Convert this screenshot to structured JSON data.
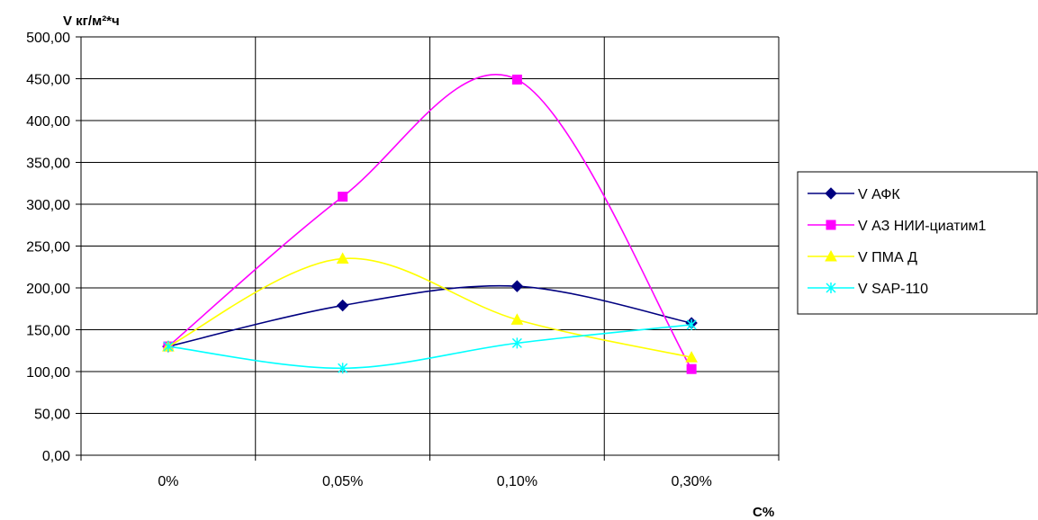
{
  "chart_data": {
    "type": "line",
    "title": "",
    "ylabel": "V кг/м²*ч",
    "xlabel": "С%",
    "categories": [
      "0%",
      "0,05%",
      "0,10%",
      "0,30%"
    ],
    "ylim": [
      0,
      500
    ],
    "ystep": 50,
    "y_tick_labels": [
      "0,00",
      "50,00",
      "100,00",
      "150,00",
      "200,00",
      "250,00",
      "300,00",
      "350,00",
      "400,00",
      "450,00",
      "500,00"
    ],
    "grid": true,
    "smooth": true,
    "legend_position": "right",
    "series": [
      {
        "name": "V АФК",
        "values": [
          130,
          179,
          202,
          158
        ],
        "color": "#000080",
        "marker": "diamond"
      },
      {
        "name": "V АЗ НИИ-циатим1",
        "values": [
          130,
          309,
          449,
          103
        ],
        "color": "#ff00ff",
        "marker": "square"
      },
      {
        "name": "V ПМА Д",
        "values": [
          130,
          235,
          162,
          117
        ],
        "color": "#ffff00",
        "marker": "triangle"
      },
      {
        "name": "V SAP-110",
        "values": [
          130,
          104,
          134,
          156
        ],
        "color": "#00ffff",
        "marker": "x"
      }
    ]
  }
}
